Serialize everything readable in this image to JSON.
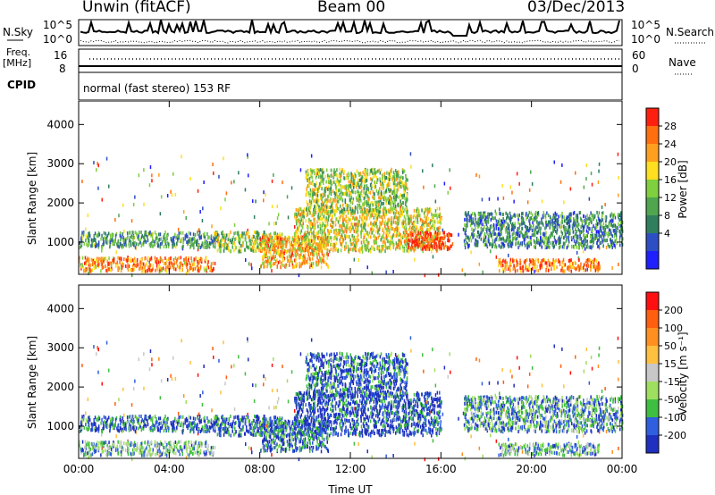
{
  "header": {
    "radar": "Unwin (fitACF)",
    "beam": "Beam 00",
    "date": "03/Dec/2013"
  },
  "top_panels": {
    "nsky_label": "N.Sky",
    "nsky_ticks": [
      "10^5",
      "10^0"
    ],
    "nsearch_label": "N.Search",
    "nsearch_ticks": [
      "10^5",
      "10^0"
    ],
    "freq_label_1": "Freq.",
    "freq_label_2": "[MHz]",
    "freq_ticks": [
      "16",
      "8"
    ],
    "nave_label": "Nave",
    "nave_ticks": [
      "60",
      "0"
    ],
    "cpid_label": "CPID",
    "cpid_text": "normal (fast stereo) 153 RF"
  },
  "chart_data": [
    {
      "type": "heatmap",
      "panel": "power",
      "ylabel": "Slant Range [km]",
      "xlabel": "",
      "x_ticks": [
        "00:00",
        "04:00",
        "08:00",
        "12:00",
        "16:00",
        "20:00",
        "00:00"
      ],
      "y_ticks": [
        "1000",
        "2000",
        "3000",
        "4000"
      ],
      "xlim_hours": [
        0,
        24
      ],
      "ylim_km": [
        180,
        4600
      ],
      "colorbar_label": "Power [dB]",
      "colorbar_ticks": [
        "28",
        "24",
        "20",
        "16",
        "12",
        "8",
        "4"
      ],
      "colors": [
        "#1f1fff",
        "#2e4fc4",
        "#2f7f5f",
        "#4fa64f",
        "#7fcf3f",
        "#ffdf1f",
        "#ff9f1f",
        "#ff6f0f",
        "#ff1f0f"
      ],
      "scatter_regions": [
        {
          "t0": 0.0,
          "t1": 6.0,
          "r0": 300,
          "r1": 650,
          "level": 0.75
        },
        {
          "t0": 0.0,
          "t1": 6.5,
          "r0": 900,
          "r1": 1300,
          "level": 0.35
        },
        {
          "t0": 6.0,
          "t1": 9.0,
          "r0": 800,
          "r1": 1300,
          "level": 0.5
        },
        {
          "t0": 8.0,
          "t1": 11.0,
          "r0": 400,
          "r1": 1200,
          "level": 0.7
        },
        {
          "t0": 9.5,
          "t1": 16.0,
          "r0": 800,
          "r1": 1900,
          "level": 0.6
        },
        {
          "t0": 14.5,
          "t1": 16.5,
          "r0": 850,
          "r1": 1300,
          "level": 0.95
        },
        {
          "t0": 10.0,
          "t1": 14.5,
          "r0": 1800,
          "r1": 2900,
          "level": 0.5
        },
        {
          "t0": 17.0,
          "t1": 24.0,
          "r0": 900,
          "r1": 1800,
          "level": 0.3
        },
        {
          "t0": 18.5,
          "t1": 23.0,
          "r0": 300,
          "r1": 600,
          "level": 0.8
        }
      ]
    },
    {
      "type": "heatmap",
      "panel": "velocity",
      "ylabel": "Slant Range [km]",
      "xlabel": "Time UT",
      "x_ticks": [
        "00:00",
        "04:00",
        "08:00",
        "12:00",
        "16:00",
        "20:00",
        "00:00"
      ],
      "y_ticks": [
        "1000",
        "2000",
        "3000",
        "4000"
      ],
      "xlim_hours": [
        0,
        24
      ],
      "ylim_km": [
        180,
        4600
      ],
      "colorbar_label": "Velocity [m s⁻¹]",
      "colorbar_ticks": [
        "200",
        "100",
        "50",
        "15",
        "-15",
        "-50",
        "-100",
        "-200"
      ],
      "colors": [
        "#1f2fbf",
        "#2f5fdf",
        "#3fbf3f",
        "#9fdf5f",
        "#c8c8c8",
        "#ffbf3f",
        "#ff8f1f",
        "#ff5f0f",
        "#ff0f0f"
      ],
      "scatter_regions": [
        {
          "t0": 0.0,
          "t1": 6.0,
          "r0": 300,
          "r1": 650,
          "level": 0.3
        },
        {
          "t0": 0.0,
          "t1": 6.5,
          "r0": 900,
          "r1": 1300,
          "level": 0.15
        },
        {
          "t0": 6.0,
          "t1": 9.0,
          "r0": 800,
          "r1": 1300,
          "level": 0.15
        },
        {
          "t0": 8.0,
          "t1": 11.0,
          "r0": 400,
          "r1": 1200,
          "level": 0.15
        },
        {
          "t0": 9.5,
          "t1": 16.0,
          "r0": 800,
          "r1": 1900,
          "level": 0.1
        },
        {
          "t0": 10.0,
          "t1": 14.5,
          "r0": 1800,
          "r1": 2900,
          "level": 0.15
        },
        {
          "t0": 17.0,
          "t1": 24.0,
          "r0": 900,
          "r1": 1800,
          "level": 0.25
        },
        {
          "t0": 18.5,
          "t1": 23.0,
          "r0": 300,
          "r1": 600,
          "level": 0.3
        }
      ]
    }
  ]
}
